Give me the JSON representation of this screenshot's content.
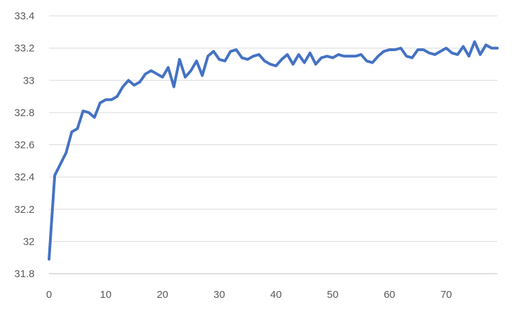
{
  "chart_data": {
    "type": "line",
    "title": "",
    "xlabel": "",
    "ylabel": "",
    "xlim": [
      0,
      79
    ],
    "ylim": [
      31.8,
      33.4
    ],
    "x_ticks": [
      0,
      10,
      20,
      30,
      40,
      50,
      60,
      70
    ],
    "y_ticks": [
      31.8,
      32,
      32.2,
      32.4,
      32.6,
      32.8,
      33,
      33.2,
      33.4
    ],
    "x_tick_labels": [
      "0",
      "10",
      "20",
      "30",
      "40",
      "50",
      "60",
      "70"
    ],
    "y_tick_labels": [
      "31.8",
      "32",
      "32.2",
      "32.4",
      "32.6",
      "32.8",
      "33",
      "33.2",
      "33.4"
    ],
    "grid": "horizontal",
    "legend": "none",
    "series": [
      {
        "color": "#4472c4",
        "x": [
          0,
          1,
          2,
          3,
          4,
          5,
          6,
          7,
          8,
          9,
          10,
          11,
          12,
          13,
          14,
          15,
          16,
          17,
          18,
          19,
          20,
          21,
          22,
          23,
          24,
          25,
          26,
          27,
          28,
          29,
          30,
          31,
          32,
          33,
          34,
          35,
          36,
          37,
          38,
          39,
          40,
          41,
          42,
          43,
          44,
          45,
          46,
          47,
          48,
          49,
          50,
          51,
          52,
          53,
          54,
          55,
          56,
          57,
          58,
          59,
          60,
          61,
          62,
          63,
          64,
          65,
          66,
          67,
          68,
          69,
          70,
          71,
          72,
          73,
          74,
          75,
          76,
          77,
          78,
          79
        ],
        "values": [
          31.89,
          32.41,
          32.48,
          32.55,
          32.68,
          32.7,
          32.81,
          32.8,
          32.77,
          32.86,
          32.88,
          32.88,
          32.9,
          32.96,
          33.0,
          32.97,
          32.99,
          33.04,
          33.06,
          33.04,
          33.02,
          33.08,
          32.96,
          33.13,
          33.02,
          33.06,
          33.12,
          33.03,
          33.15,
          33.18,
          33.13,
          33.12,
          33.18,
          33.19,
          33.14,
          33.13,
          33.15,
          33.16,
          33.12,
          33.1,
          33.09,
          33.13,
          33.16,
          33.1,
          33.16,
          33.11,
          33.17,
          33.1,
          33.14,
          33.15,
          33.14,
          33.16,
          33.15,
          33.15,
          33.15,
          33.16,
          33.12,
          33.11,
          33.15,
          33.18,
          33.19,
          33.19,
          33.2,
          33.15,
          33.14,
          33.19,
          33.19,
          33.17,
          33.16,
          33.18,
          33.2,
          33.17,
          33.16,
          33.21,
          33.15,
          33.24,
          33.16,
          33.22,
          33.2,
          33.2
        ]
      }
    ]
  }
}
